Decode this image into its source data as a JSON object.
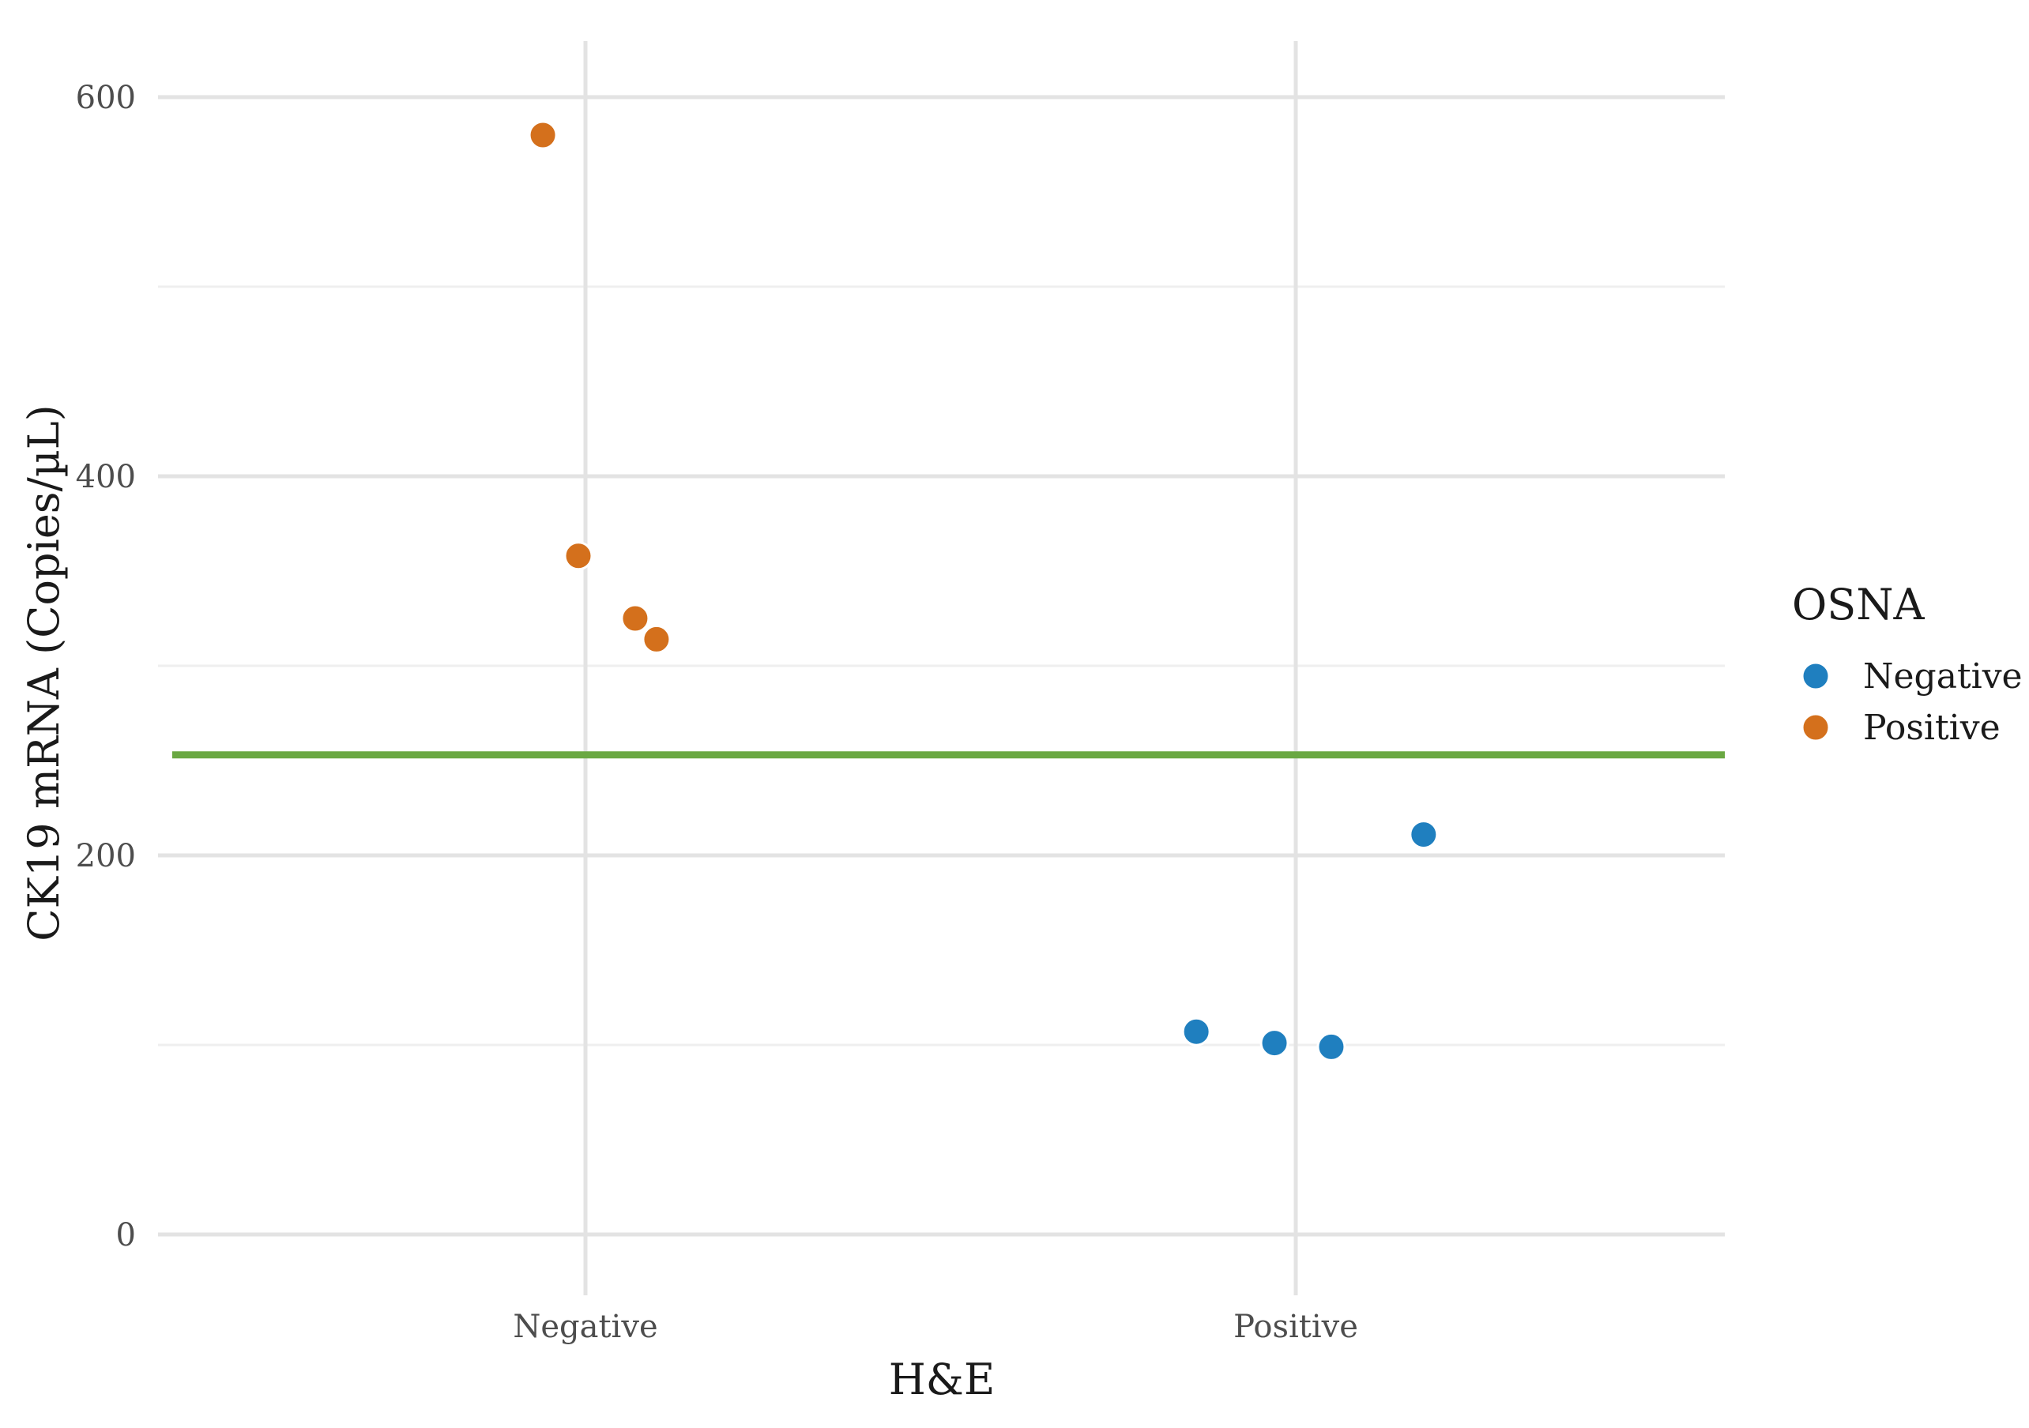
{
  "chart_data": {
    "type": "scatter",
    "xlabel": "H&E",
    "ylabel": "CK19 mRNA (Copies/µL)",
    "categories": [
      "Negative",
      "Positive"
    ],
    "ylim": [
      -30,
      630
    ],
    "yticks": [
      0,
      200,
      400,
      600
    ],
    "yticks_minor": [
      100,
      300,
      500
    ],
    "grid": true,
    "legend": {
      "title": "OSNA",
      "placement": "right",
      "entries": [
        {
          "label": "Negative",
          "color": "#1f7fbf"
        },
        {
          "label": "Positive",
          "color": "#d4701c"
        }
      ]
    },
    "threshold": {
      "y": 253,
      "color": "#6aa842"
    },
    "series": [
      {
        "name": "Negative",
        "color": "#1f7fbf",
        "points": [
          {
            "x": "Positive",
            "jitter": -0.14,
            "y": 107
          },
          {
            "x": "Positive",
            "jitter": -0.03,
            "y": 101
          },
          {
            "x": "Positive",
            "jitter": 0.05,
            "y": 99
          },
          {
            "x": "Positive",
            "jitter": 0.18,
            "y": 211
          }
        ]
      },
      {
        "name": "Positive",
        "color": "#d4701c",
        "points": [
          {
            "x": "Negative",
            "jitter": -0.06,
            "y": 580
          },
          {
            "x": "Negative",
            "jitter": -0.01,
            "y": 358
          },
          {
            "x": "Negative",
            "jitter": 0.07,
            "y": 325
          },
          {
            "x": "Negative",
            "jitter": 0.1,
            "y": 314
          }
        ]
      }
    ]
  }
}
